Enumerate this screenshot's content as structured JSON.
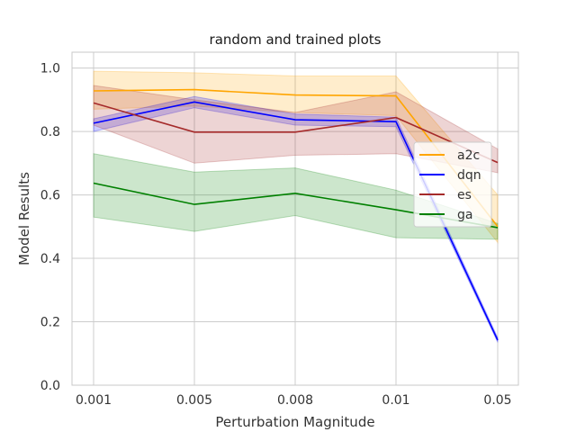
{
  "chart_data": {
    "type": "line",
    "title": "random and trained plots",
    "xlabel": "Perturbation Magnitude",
    "ylabel": "Model Results",
    "categories": [
      "0.001",
      "0.005",
      "0.008",
      "0.01",
      "0.05"
    ],
    "ylim": [
      0.0,
      1.05
    ],
    "yticks": [
      "0.0",
      "0.2",
      "0.4",
      "0.6",
      "0.8",
      "1.0"
    ],
    "grid": true,
    "legend_position": "right",
    "series": [
      {
        "name": "a2c",
        "color": "#ffa500",
        "values": [
          0.928,
          0.932,
          0.915,
          0.912,
          0.5
        ],
        "lower": [
          0.87,
          0.88,
          0.86,
          0.85,
          0.45
        ],
        "upper": [
          0.99,
          0.985,
          0.975,
          0.975,
          0.6
        ]
      },
      {
        "name": "dqn",
        "color": "#0000ff",
        "values": [
          0.826,
          0.893,
          0.837,
          0.831,
          0.142
        ],
        "lower": [
          0.8,
          0.875,
          0.82,
          0.815,
          0.135
        ],
        "upper": [
          0.84,
          0.91,
          0.855,
          0.845,
          0.15
        ]
      },
      {
        "name": "es",
        "color": "#a52a2a",
        "values": [
          0.89,
          0.798,
          0.798,
          0.844,
          0.702
        ],
        "lower": [
          0.82,
          0.7,
          0.725,
          0.73,
          0.67
        ],
        "upper": [
          0.945,
          0.9,
          0.86,
          0.925,
          0.745
        ]
      },
      {
        "name": "ga",
        "color": "#008000",
        "values": [
          0.637,
          0.57,
          0.605,
          0.553,
          0.497
        ],
        "lower": [
          0.53,
          0.485,
          0.535,
          0.465,
          0.46
        ],
        "upper": [
          0.73,
          0.672,
          0.685,
          0.615,
          0.51
        ]
      }
    ]
  }
}
